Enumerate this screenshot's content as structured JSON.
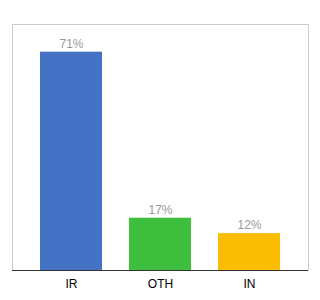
{
  "chart_data": {
    "type": "bar",
    "categories": [
      "IR",
      "OTH",
      "IN"
    ],
    "values": [
      71,
      17,
      12
    ],
    "value_labels": [
      "71%",
      "17%",
      "12%"
    ],
    "colors": [
      "#4472C4",
      "#3DBF3D",
      "#FBBC04"
    ],
    "ylim": [
      0,
      80
    ],
    "data_labels": true,
    "tick_labels": "x"
  }
}
